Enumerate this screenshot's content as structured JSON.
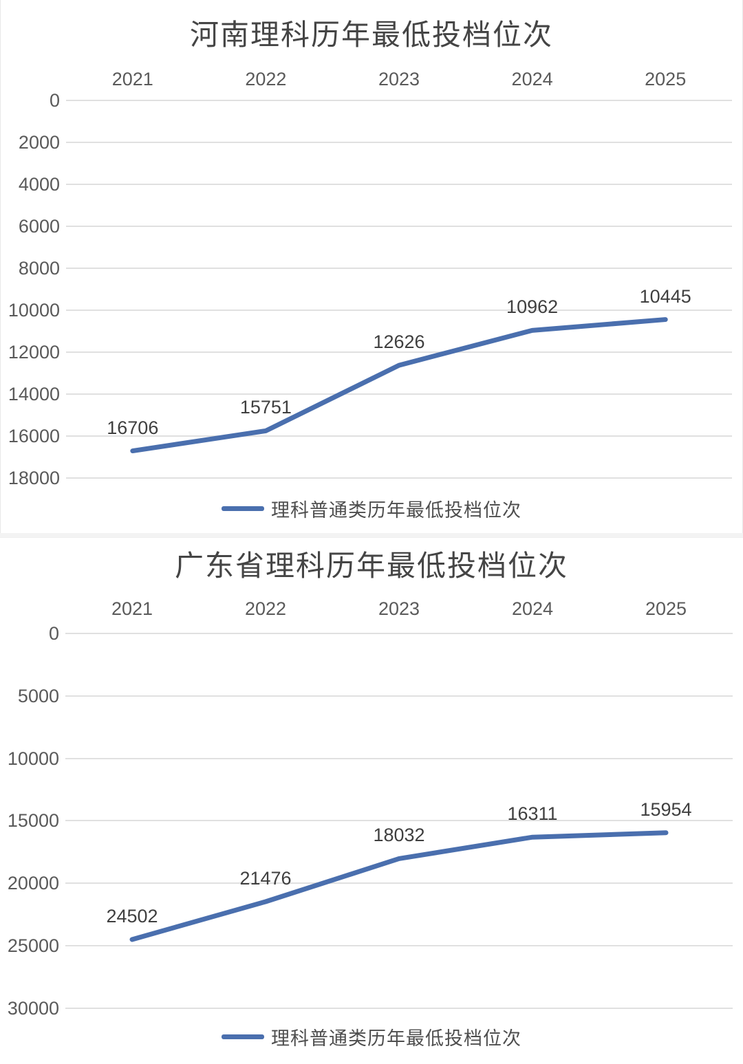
{
  "colors": {
    "line": "#4a6fae",
    "gridline": "#e0e0e0",
    "tick_text": "#5a5a5a",
    "title_text": "#454545"
  },
  "chart_data": [
    {
      "type": "line",
      "title": "河南理科历年最低投档位次",
      "categories": [
        "2021",
        "2022",
        "2023",
        "2024",
        "2025"
      ],
      "series": [
        {
          "name": "理科普通类历年最低投档位次",
          "values": [
            16706,
            15751,
            12626,
            10962,
            10445
          ]
        }
      ],
      "yticks": [
        0,
        2000,
        4000,
        6000,
        8000,
        10000,
        12000,
        14000,
        16000,
        18000
      ],
      "ylim": [
        0,
        18000
      ],
      "y_axis_inverted": true,
      "x_axis_position": "top",
      "grid": true,
      "legend_position": "bottom",
      "line_color": "#4a6fae",
      "data_labels_shown": true
    },
    {
      "type": "line",
      "title": "广东省理科历年最低投档位次",
      "categories": [
        "2021",
        "2022",
        "2023",
        "2024",
        "2025"
      ],
      "series": [
        {
          "name": "理科普通类历年最低投档位次",
          "values": [
            24502,
            21476,
            18032,
            16311,
            15954
          ]
        }
      ],
      "yticks": [
        0,
        5000,
        10000,
        15000,
        20000,
        25000,
        30000
      ],
      "ylim": [
        0,
        30000
      ],
      "y_axis_inverted": true,
      "x_axis_position": "top",
      "grid": true,
      "legend_position": "bottom",
      "line_color": "#4a6fae",
      "data_labels_shown": true
    }
  ]
}
